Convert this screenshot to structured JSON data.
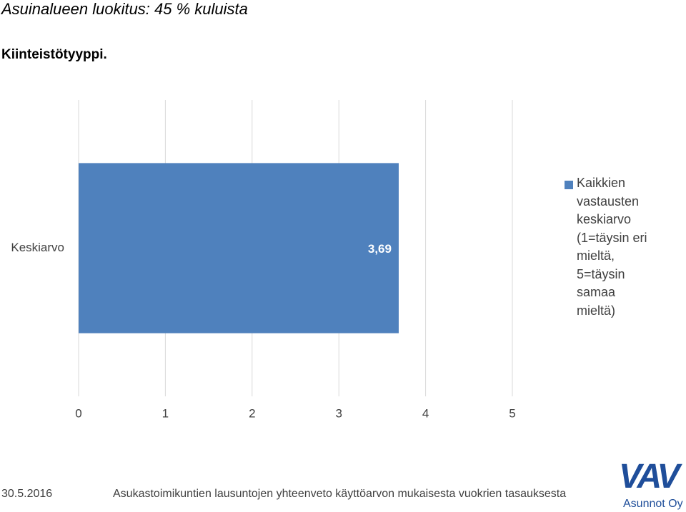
{
  "title": "Asuinalueen luokitus: 45 % kuluista",
  "subtitle": "Kiinteistötyyppi.",
  "footer": {
    "date": "30.5.2016",
    "text": "Asukastoimikuntien lausuntojen yhteenveto käyttöarvon mukaisesta vuokrien tasauksesta",
    "logo": "VAV",
    "logo_subtitle": "Asunnot Oy"
  },
  "chart_data": {
    "type": "hbar",
    "categories": [
      "Keskiarvo"
    ],
    "series": [
      {
        "name": "Kaikkien vastausten keskiarvo (1=täysin eri mieltä, 5=täysin samaa mieltä)",
        "color": "#4f81bd",
        "values": [
          3.69
        ],
        "value_labels": [
          "3,69"
        ]
      }
    ],
    "xlim": [
      0,
      5
    ],
    "xticks": [
      0,
      1,
      2,
      3,
      4,
      5
    ],
    "grid": true,
    "legend": "right"
  }
}
